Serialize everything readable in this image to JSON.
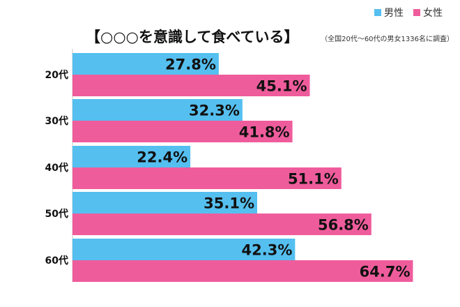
{
  "chart_data": {
    "type": "bar",
    "orientation": "horizontal",
    "title": "【○○○を意識して食べている】",
    "subtitle": "（全国20代～60代の男女1336名に調査）",
    "categories": [
      "20代",
      "30代",
      "40代",
      "50代",
      "60代"
    ],
    "series": [
      {
        "name": "男性",
        "color": "#55bff0",
        "values": [
          27.8,
          32.3,
          22.4,
          35.1,
          42.3
        ],
        "labels": [
          "27.8%",
          "32.3%",
          "22.4%",
          "35.1%",
          "42.3%"
        ]
      },
      {
        "name": "女性",
        "color": "#ef5c9c",
        "values": [
          45.1,
          41.8,
          51.1,
          56.8,
          64.7
        ],
        "labels": [
          "45.1%",
          "41.8%",
          "51.1%",
          "56.8%",
          "64.7%"
        ]
      }
    ],
    "xlim": [
      0,
      70
    ],
    "legend_position": "top-right",
    "grid": false
  }
}
